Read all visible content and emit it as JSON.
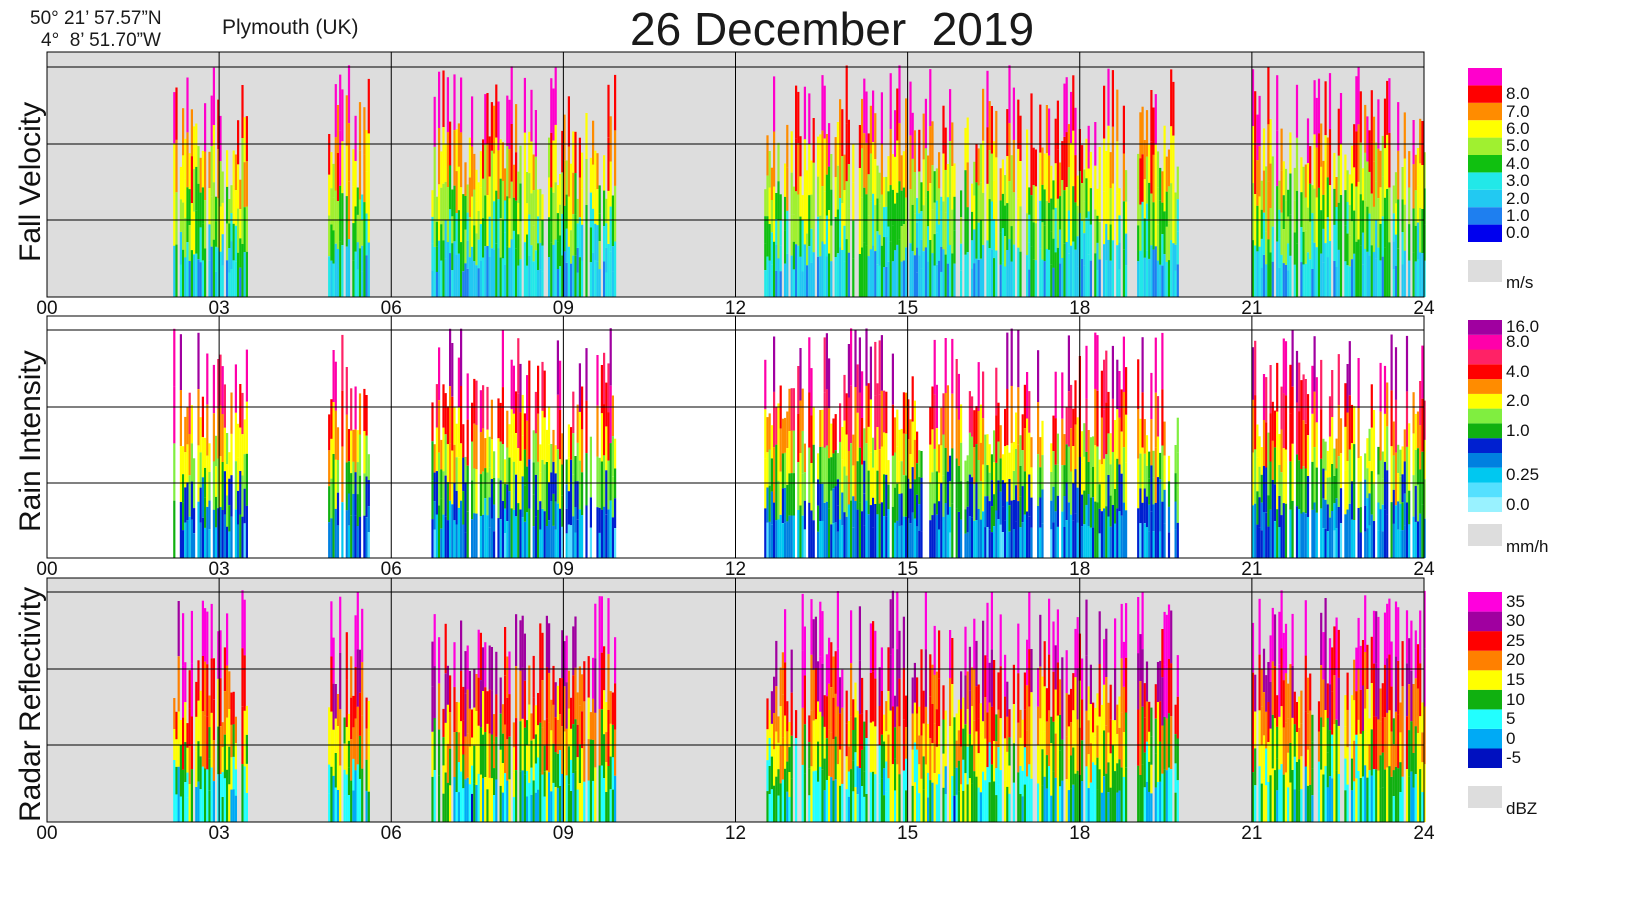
{
  "header": {
    "title": "26 December  2019",
    "lat": "50° 21’ 57.57”N",
    "lon": "4°  8’ 51.70”W",
    "station": "Plymouth (UK)"
  },
  "chart_data": [
    {
      "type": "heatmap",
      "title": "",
      "ylabel": "Fall Velocity",
      "xlabel": "",
      "x_ticks": [
        "00",
        "03",
        "06",
        "09",
        "12",
        "15",
        "18",
        "21",
        "24"
      ],
      "xlim": [
        0,
        24
      ],
      "unit": "m/s",
      "background": "#dddddd",
      "colorbar": [
        {
          "label": "0.0",
          "color": "#0000ee"
        },
        {
          "label": "1.0",
          "color": "#1e7ff0"
        },
        {
          "label": "2.0",
          "color": "#22c9f2"
        },
        {
          "label": "3.0",
          "color": "#22e8e8"
        },
        {
          "label": "4.0",
          "color": "#10c010"
        },
        {
          "label": "5.0",
          "color": "#a0f030"
        },
        {
          "label": "6.0",
          "color": "#ffff00"
        },
        {
          "label": "7.0",
          "color": "#ff8c00"
        },
        {
          "label": "8.0",
          "color": "#ff0000"
        },
        {
          "label": "",
          "color": "#ff00cc"
        }
      ],
      "rain_periods_hours": [
        [
          2.2,
          3.5
        ],
        [
          4.9,
          5.6
        ],
        [
          6.7,
          9.9
        ],
        [
          12.5,
          18.8
        ],
        [
          19.0,
          19.7
        ],
        [
          21.0,
          24.0
        ]
      ]
    },
    {
      "type": "heatmap",
      "title": "",
      "ylabel": "Rain Intensity",
      "xlabel": "",
      "x_ticks": [
        "00",
        "03",
        "06",
        "09",
        "12",
        "15",
        "18",
        "21",
        "24"
      ],
      "xlim": [
        0,
        24
      ],
      "unit": "mm/h",
      "background": "#ffffff",
      "colorbar": [
        {
          "label": "0.0",
          "color": "#99f2ff"
        },
        {
          "label": "",
          "color": "#55e0ff"
        },
        {
          "label": "0.25",
          "color": "#00c8f0"
        },
        {
          "label": "",
          "color": "#0080e0"
        },
        {
          "label": "",
          "color": "#0020d0"
        },
        {
          "label": "1.0",
          "color": "#10b010"
        },
        {
          "label": "",
          "color": "#80ee40"
        },
        {
          "label": "2.0",
          "color": "#ffff00"
        },
        {
          "label": "",
          "color": "#ff8c00"
        },
        {
          "label": "4.0",
          "color": "#ff0000"
        },
        {
          "label": "",
          "color": "#ff2266"
        },
        {
          "label": "8.0",
          "color": "#ff00aa"
        },
        {
          "label": "16.0",
          "color": "#a000a0"
        }
      ],
      "rain_periods_hours": [
        [
          2.2,
          3.5
        ],
        [
          4.9,
          5.6
        ],
        [
          6.7,
          9.9
        ],
        [
          12.5,
          18.8
        ],
        [
          19.0,
          19.7
        ],
        [
          21.0,
          24.0
        ]
      ]
    },
    {
      "type": "heatmap",
      "title": "",
      "ylabel": "Radar Reflectivity",
      "xlabel": "",
      "x_ticks": [
        "00",
        "03",
        "06",
        "09",
        "12",
        "15",
        "18",
        "21",
        "24"
      ],
      "xlim": [
        0,
        24
      ],
      "unit": "dBZ",
      "background": "#dddddd",
      "colorbar": [
        {
          "label": "-5",
          "color": "#0010c0"
        },
        {
          "label": "0",
          "color": "#00aaf5"
        },
        {
          "label": "5",
          "color": "#22ffff"
        },
        {
          "label": "10",
          "color": "#10b010"
        },
        {
          "label": "15",
          "color": "#ffff00"
        },
        {
          "label": "20",
          "color": "#ff8000"
        },
        {
          "label": "25",
          "color": "#ff0000"
        },
        {
          "label": "30",
          "color": "#a000a0"
        },
        {
          "label": "35",
          "color": "#ff00dd"
        }
      ],
      "rain_periods_hours": [
        [
          2.2,
          3.5
        ],
        [
          4.9,
          5.6
        ],
        [
          6.7,
          9.9
        ],
        [
          12.5,
          18.8
        ],
        [
          19.0,
          19.7
        ],
        [
          21.0,
          24.0
        ]
      ]
    }
  ]
}
